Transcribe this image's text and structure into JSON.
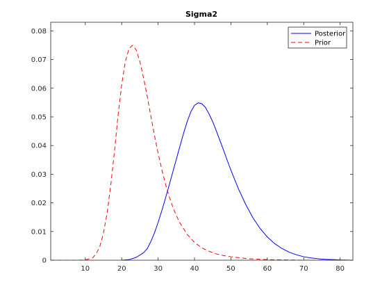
{
  "chart_data": {
    "type": "line",
    "title": "Sigma2",
    "xlabel": "",
    "ylabel": "",
    "xlim": [
      0.5,
      83.5
    ],
    "ylim": [
      0,
      0.083
    ],
    "xticks": [
      10,
      20,
      30,
      40,
      50,
      60,
      70,
      80
    ],
    "yticks": [
      0,
      0.01,
      0.02,
      0.03,
      0.04,
      0.05,
      0.06,
      0.07,
      0.08
    ],
    "xtick_labels": [
      "10",
      "20",
      "30",
      "40",
      "50",
      "60",
      "70",
      "80"
    ],
    "ytick_labels": [
      "0",
      "0.01",
      "0.02",
      "0.03",
      "0.04",
      "0.05",
      "0.06",
      "0.07",
      "0.08"
    ],
    "grid": false,
    "legend_position": "top-right",
    "series": [
      {
        "name": "Posterior",
        "color": "#0000ff",
        "dash": "solid",
        "x": [
          20,
          22,
          24,
          26,
          27,
          28,
          29,
          30,
          31,
          32,
          33,
          34,
          35,
          36,
          37,
          38,
          39,
          40,
          41,
          42,
          43,
          44,
          45,
          46,
          47,
          48,
          49,
          50,
          52,
          54,
          56,
          58,
          60,
          62,
          64,
          66,
          68,
          70,
          72,
          74,
          76,
          78,
          80,
          83.5
        ],
        "y": [
          0,
          0.0002,
          0.001,
          0.0026,
          0.004,
          0.0065,
          0.0095,
          0.0132,
          0.0172,
          0.0215,
          0.026,
          0.0306,
          0.0352,
          0.0398,
          0.0443,
          0.0484,
          0.0518,
          0.054,
          0.0549,
          0.0546,
          0.0533,
          0.051,
          0.0483,
          0.0451,
          0.0417,
          0.0383,
          0.0348,
          0.0314,
          0.0251,
          0.0196,
          0.0149,
          0.0111,
          0.0081,
          0.0058,
          0.0041,
          0.0028,
          0.0019,
          0.0012,
          0.0008,
          0.0005,
          0.0003,
          0.0002,
          0.0001,
          0
        ]
      },
      {
        "name": "Prior",
        "color": "#ff0000",
        "dash": "dashed",
        "x": [
          0.5,
          8,
          10,
          12,
          13,
          14,
          15,
          16,
          17,
          18,
          19,
          20,
          21,
          22,
          23,
          24,
          25,
          26,
          27,
          28,
          29,
          30,
          31,
          32,
          33,
          34,
          35,
          36,
          38,
          40,
          42,
          44,
          46,
          48,
          50,
          52,
          55,
          60,
          65,
          70,
          83.5
        ],
        "y": [
          0,
          0,
          0.0001,
          0.0008,
          0.0022,
          0.0048,
          0.0095,
          0.0165,
          0.0262,
          0.0378,
          0.0505,
          0.0612,
          0.0693,
          0.0738,
          0.075,
          0.0733,
          0.0693,
          0.0636,
          0.0572,
          0.0503,
          0.0436,
          0.0373,
          0.0317,
          0.0267,
          0.0224,
          0.0187,
          0.0156,
          0.013,
          0.009,
          0.0062,
          0.0043,
          0.0031,
          0.0022,
          0.0016,
          0.0012,
          0.0009,
          0.0005,
          0.0002,
          0.0001,
          0,
          0
        ]
      }
    ]
  }
}
